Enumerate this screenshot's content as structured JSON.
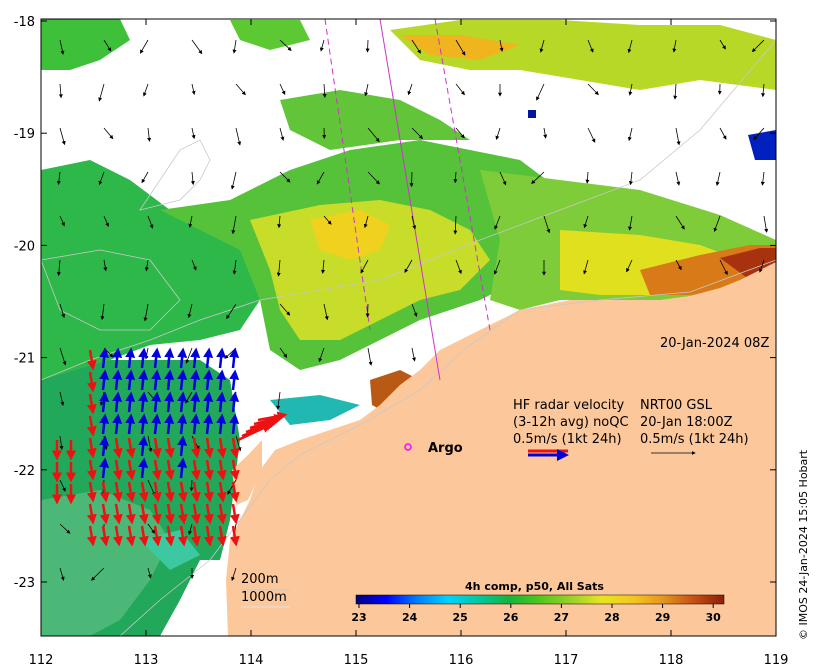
{
  "map": {
    "x_ticks": [
      "112",
      "113",
      "114",
      "115",
      "116",
      "117",
      "118",
      "119"
    ],
    "y_ticks": [
      "-18",
      "-19",
      "-20",
      "-21",
      "-22",
      "-23"
    ],
    "date_label": "20-Jan-2024 08Z",
    "legend": {
      "line1_left": "HF radar velocity",
      "line1_right": "NRT00 GSL",
      "line2_left": "(3-12h avg) noQC",
      "line2_right": "20-Jan 18:00Z",
      "line3_left": "0.5m/s (1kt 24h)",
      "line3_right": "0.5m/s (1kt 24h)"
    },
    "argo_label": "Argo",
    "isobath_200": "200m",
    "isobath_1000": "1000m",
    "credit": "© IMOS 24-Jan-2024 15:05 Hobart",
    "colorbar": {
      "title": "4h comp, p50, All Sats",
      "ticks": [
        "23",
        "24",
        "25",
        "26",
        "27",
        "28",
        "29",
        "30"
      ],
      "colors": [
        "#00007f",
        "#0000ff",
        "#007fff",
        "#00d2ff",
        "#00c8a0",
        "#14b43c",
        "#50c81e",
        "#96d228",
        "#e6e61e",
        "#f5c81e",
        "#e6961e",
        "#c85014",
        "#8c1e0a"
      ]
    },
    "colors": {
      "land": "#fcc89b",
      "blue_arrows": "#0000dd",
      "red_arrows": "#ee1111",
      "track": "#cc33cc",
      "argo": "#ff00ff"
    }
  }
}
